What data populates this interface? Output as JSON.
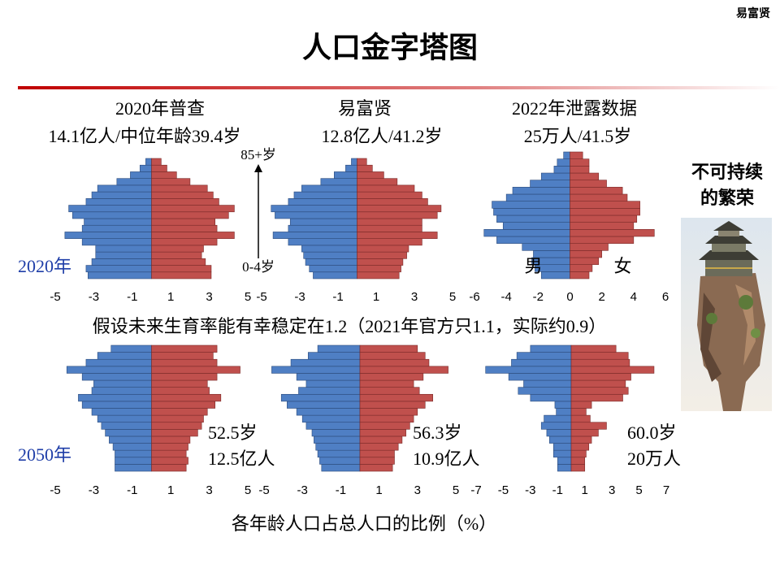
{
  "slide": {
    "title": "人口金字塔图",
    "author": "易富贤",
    "row_2020": "2020年",
    "row_2050": "2050年",
    "top_age": "85+岁",
    "bottom_age": "0-4岁",
    "middle_note": "假设未来生育率能有幸稳定在1.2（2021年官方只1.1，实际约0.9）",
    "x_axis_label": "各年龄人口占总人口的比例（%）",
    "side_note": [
      "不可持续",
      "的繁荣"
    ]
  },
  "chart_data": [
    {
      "type": "bar",
      "title": "2020年普查",
      "subtitle": "14.1亿人/中位年龄39.4岁",
      "categories": [
        null,
        null,
        null,
        null,
        null,
        null,
        null,
        null,
        null,
        null,
        null,
        null,
        null,
        null,
        null,
        null,
        null,
        null
      ],
      "series": [
        {
          "color": "#4f7fc4",
          "values": [
            -3.3,
            -3.4,
            -3.1,
            -2.9,
            -2.9,
            -3.6,
            -4.5,
            -3.6,
            -3.5,
            -4.1,
            -4.3,
            -3.4,
            -3.1,
            -2.8,
            -1.8,
            -1.1,
            -0.6,
            -0.3
          ]
        },
        {
          "color": "#c0504d",
          "values": [
            3.1,
            3.1,
            2.8,
            2.6,
            2.7,
            3.4,
            4.3,
            3.4,
            3.3,
            4.0,
            4.3,
            3.5,
            3.2,
            2.9,
            2.0,
            1.3,
            0.8,
            0.5
          ]
        }
      ],
      "xlim": [
        -5,
        5
      ],
      "xticks": [
        -5,
        -3,
        -1,
        1,
        3,
        5
      ]
    },
    {
      "type": "bar",
      "title": "易富贤",
      "subtitle": "12.8亿人/41.2岁",
      "categories": [
        null,
        null,
        null,
        null,
        null,
        null,
        null,
        null,
        null,
        null,
        null,
        null,
        null,
        null,
        null,
        null,
        null,
        null
      ],
      "series": [
        {
          "color": "#4f7fc4",
          "values": [
            -2.3,
            -2.5,
            -2.7,
            -2.8,
            -2.9,
            -3.6,
            -4.4,
            -3.6,
            -3.5,
            -4.3,
            -4.5,
            -3.6,
            -3.3,
            -2.9,
            -1.9,
            -1.2,
            -0.6,
            -0.3
          ]
        },
        {
          "color": "#c0504d",
          "values": [
            2.2,
            2.3,
            2.4,
            2.6,
            2.7,
            3.4,
            4.2,
            3.4,
            3.4,
            4.2,
            4.4,
            3.7,
            3.4,
            3.0,
            2.1,
            1.4,
            0.8,
            0.5
          ]
        }
      ],
      "xlim": [
        -5,
        5
      ],
      "xticks": [
        -5,
        -3,
        -1,
        1,
        3,
        5
      ]
    },
    {
      "type": "bar",
      "title": "2022年泄露数据",
      "subtitle": "25万人/41.5岁",
      "categories": [
        null,
        null,
        null,
        null,
        null,
        null,
        null,
        null,
        null,
        null,
        null,
        null,
        null,
        null,
        null,
        null,
        null,
        null
      ],
      "series": [
        {
          "name": "男",
          "color": "#4f7fc4",
          "values": [
            -1.8,
            -2.2,
            -2.4,
            -2.3,
            -3.0,
            -4.6,
            -5.4,
            -4.2,
            -4.6,
            -4.8,
            -4.9,
            -4.0,
            -3.6,
            -2.5,
            -1.8,
            -1.0,
            -0.8,
            -0.4
          ]
        },
        {
          "name": "女",
          "color": "#c0504d",
          "values": [
            1.2,
            1.4,
            1.8,
            2.0,
            2.4,
            4.0,
            5.3,
            4.0,
            4.2,
            4.4,
            4.4,
            3.6,
            3.3,
            2.3,
            1.8,
            1.2,
            1.2,
            0.8
          ]
        }
      ],
      "xlim": [
        -6,
        6
      ],
      "xticks": [
        -6,
        -4,
        -2,
        0,
        2,
        4,
        6
      ]
    },
    {
      "type": "bar",
      "annotations": [
        "52.5岁",
        "12.5亿人"
      ],
      "categories": [
        null,
        null,
        null,
        null,
        null,
        null,
        null,
        null,
        null,
        null,
        null,
        null,
        null,
        null,
        null,
        null,
        null,
        null
      ],
      "series": [
        {
          "color": "#4f7fc4",
          "values": [
            -1.9,
            -1.9,
            -1.9,
            -2.0,
            -2.2,
            -2.4,
            -2.6,
            -2.8,
            -3.1,
            -3.6,
            -3.8,
            -3.1,
            -3.0,
            -3.6,
            -4.4,
            -3.4,
            -2.8,
            -2.1
          ]
        },
        {
          "color": "#c0504d",
          "values": [
            1.8,
            1.9,
            1.8,
            1.9,
            2.0,
            2.4,
            2.6,
            2.7,
            2.9,
            3.3,
            3.6,
            3.0,
            2.9,
            3.4,
            4.6,
            3.4,
            3.2,
            3.4
          ]
        }
      ],
      "xlim": [
        -5,
        5
      ],
      "xticks": [
        -5,
        -3,
        -1,
        1,
        3,
        5
      ]
    },
    {
      "type": "bar",
      "annotations": [
        "56.3岁",
        "10.9亿人"
      ],
      "categories": [
        null,
        null,
        null,
        null,
        null,
        null,
        null,
        null,
        null,
        null,
        null,
        null,
        null,
        null,
        null,
        null,
        null,
        null
      ],
      "series": [
        {
          "color": "#4f7fc4",
          "values": [
            -2.0,
            -2.1,
            -2.2,
            -2.3,
            -2.4,
            -2.5,
            -2.8,
            -3.0,
            -3.3,
            -3.8,
            -4.1,
            -3.2,
            -2.8,
            -3.3,
            -4.6,
            -3.6,
            -2.7,
            -2.2
          ]
        },
        {
          "color": "#c0504d",
          "values": [
            1.7,
            1.8,
            1.8,
            2.0,
            2.2,
            2.4,
            2.6,
            2.8,
            3.0,
            3.4,
            3.8,
            3.1,
            2.8,
            3.3,
            4.6,
            3.6,
            3.4,
            3.0
          ]
        }
      ],
      "xlim": [
        -5,
        5
      ],
      "xticks": [
        -5,
        -3,
        -1,
        1,
        3,
        5
      ]
    },
    {
      "type": "bar",
      "annotations": [
        "60.0岁",
        "20万人"
      ],
      "categories": [
        null,
        null,
        null,
        null,
        null,
        null,
        null,
        null,
        null,
        null,
        null,
        null,
        null,
        null,
        null,
        null,
        null,
        null
      ],
      "series": [
        {
          "color": "#4f7fc4",
          "values": [
            -1.0,
            -1.0,
            -1.3,
            -1.3,
            -1.6,
            -1.8,
            -2.2,
            -2.0,
            -1.1,
            -1.2,
            -3.0,
            -3.9,
            -3.5,
            -4.6,
            -6.3,
            -4.4,
            -4.0,
            -3.0
          ]
        },
        {
          "color": "#c0504d",
          "values": [
            1.0,
            1.0,
            1.1,
            1.3,
            1.5,
            2.0,
            2.6,
            1.4,
            1.1,
            1.5,
            3.8,
            4.2,
            4.0,
            4.4,
            6.1,
            4.3,
            4.2,
            3.3
          ]
        }
      ],
      "xlim": [
        -7,
        7
      ],
      "xticks": [
        -7,
        -5,
        -3,
        -1,
        1,
        3,
        5,
        7
      ]
    }
  ]
}
